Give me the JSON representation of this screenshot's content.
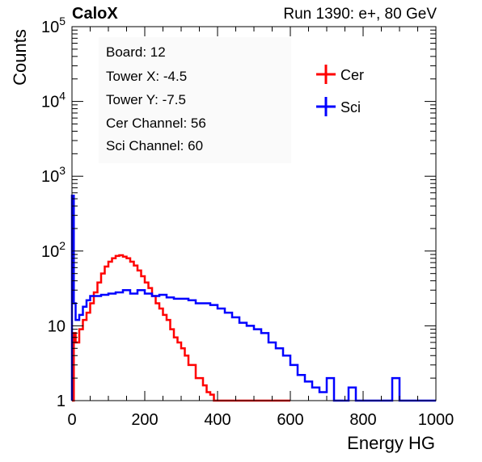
{
  "header": {
    "left_title": "CaloX",
    "right_title": "Run 1390: e+, 80 GeV"
  },
  "info": {
    "lines": [
      "Board: 12",
      "Tower X: -4.5",
      "Tower Y: -7.5",
      "Cer Channel: 56",
      "Sci Channel: 60"
    ]
  },
  "chart_data": {
    "type": "line",
    "subtype": "step-histogram",
    "xlabel": "Energy HG",
    "ylabel": "Counts",
    "xlim": [
      0,
      1000
    ],
    "ylim": [
      1,
      100000
    ],
    "yscale": "log",
    "x_ticks": [
      0,
      200,
      400,
      600,
      800,
      1000
    ],
    "x_tick_labels": [
      "0",
      "200",
      "400",
      "600",
      "800",
      "1000"
    ],
    "y_ticks": [
      1,
      10,
      100,
      1000,
      10000,
      100000
    ],
    "y_tick_labels": [
      "1",
      "10",
      "10^2",
      "10^3",
      "10^4",
      "10^5"
    ],
    "grid": false,
    "legend_position": "top-right",
    "colors": {
      "Cer": "#ff0000",
      "Sci": "#0000ff"
    },
    "series": [
      {
        "name": "Cer",
        "bins": [
          [
            0,
            5,
            1
          ],
          [
            5,
            10,
            8
          ],
          [
            10,
            20,
            6
          ],
          [
            20,
            30,
            9
          ],
          [
            30,
            40,
            12
          ],
          [
            40,
            50,
            15
          ],
          [
            50,
            60,
            20
          ],
          [
            60,
            70,
            28
          ],
          [
            70,
            80,
            38
          ],
          [
            80,
            90,
            50
          ],
          [
            90,
            100,
            62
          ],
          [
            100,
            110,
            72
          ],
          [
            110,
            120,
            80
          ],
          [
            120,
            130,
            86
          ],
          [
            130,
            140,
            88
          ],
          [
            140,
            150,
            84
          ],
          [
            150,
            160,
            80
          ],
          [
            160,
            170,
            72
          ],
          [
            170,
            180,
            64
          ],
          [
            180,
            190,
            55
          ],
          [
            190,
            200,
            46
          ],
          [
            200,
            210,
            38
          ],
          [
            210,
            220,
            32
          ],
          [
            220,
            230,
            25
          ],
          [
            230,
            240,
            20
          ],
          [
            240,
            250,
            17
          ],
          [
            250,
            260,
            14
          ],
          [
            260,
            270,
            12
          ],
          [
            270,
            280,
            9
          ],
          [
            280,
            290,
            7
          ],
          [
            290,
            300,
            6
          ],
          [
            300,
            310,
            5
          ],
          [
            310,
            320,
            4
          ],
          [
            320,
            330,
            3
          ],
          [
            330,
            340,
            3
          ],
          [
            340,
            350,
            2
          ],
          [
            350,
            360,
            2
          ],
          [
            360,
            370,
            1.6
          ],
          [
            370,
            380,
            1.3
          ],
          [
            380,
            390,
            1.2
          ],
          [
            390,
            400,
            1
          ],
          [
            400,
            600,
            1
          ]
        ]
      },
      {
        "name": "Sci",
        "bins": [
          [
            0,
            5,
            550
          ],
          [
            5,
            10,
            20
          ],
          [
            10,
            20,
            12
          ],
          [
            20,
            30,
            14
          ],
          [
            30,
            40,
            18
          ],
          [
            40,
            50,
            22
          ],
          [
            50,
            60,
            25
          ],
          [
            60,
            80,
            25
          ],
          [
            80,
            100,
            26
          ],
          [
            100,
            120,
            27
          ],
          [
            120,
            140,
            28
          ],
          [
            140,
            160,
            30
          ],
          [
            160,
            180,
            27
          ],
          [
            180,
            200,
            30
          ],
          [
            200,
            220,
            27
          ],
          [
            220,
            240,
            25
          ],
          [
            240,
            260,
            26
          ],
          [
            260,
            280,
            24
          ],
          [
            280,
            300,
            23
          ],
          [
            300,
            320,
            23
          ],
          [
            320,
            340,
            22
          ],
          [
            340,
            360,
            20
          ],
          [
            360,
            380,
            20
          ],
          [
            380,
            400,
            19
          ],
          [
            400,
            420,
            17
          ],
          [
            420,
            440,
            15
          ],
          [
            440,
            460,
            13
          ],
          [
            460,
            480,
            11
          ],
          [
            480,
            500,
            10
          ],
          [
            500,
            520,
            9
          ],
          [
            520,
            540,
            8
          ],
          [
            540,
            560,
            6
          ],
          [
            560,
            580,
            5
          ],
          [
            580,
            600,
            4
          ],
          [
            600,
            620,
            3
          ],
          [
            620,
            640,
            2.2
          ],
          [
            640,
            660,
            1.8
          ],
          [
            660,
            680,
            1.5
          ],
          [
            680,
            700,
            1.3
          ],
          [
            700,
            720,
            2
          ],
          [
            720,
            760,
            1
          ],
          [
            760,
            780,
            1.5
          ],
          [
            780,
            880,
            1
          ],
          [
            880,
            900,
            2
          ],
          [
            900,
            1000,
            1
          ]
        ]
      }
    ]
  }
}
